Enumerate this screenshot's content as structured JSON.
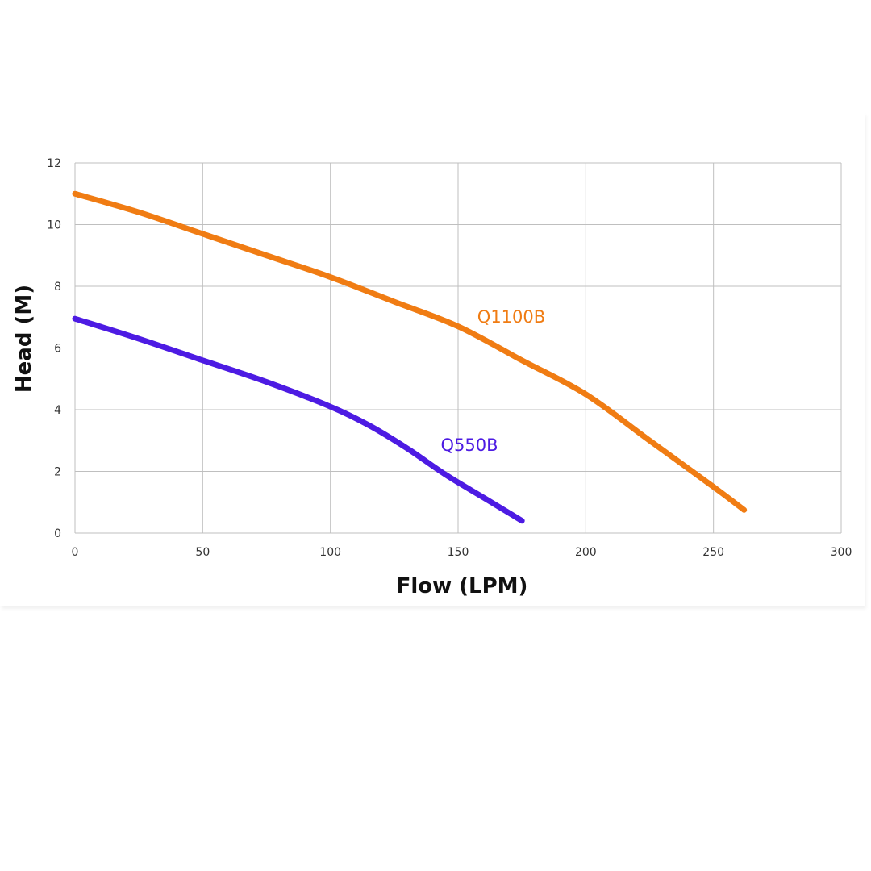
{
  "chart_data": {
    "type": "line",
    "title": "",
    "xlabel": "Flow (LPM)",
    "ylabel": "Head (M)",
    "xlim": [
      0,
      300
    ],
    "ylim": [
      0,
      12
    ],
    "x_ticks": [
      0,
      50,
      100,
      150,
      200,
      250,
      300
    ],
    "y_ticks": [
      0,
      2,
      4,
      6,
      8,
      10,
      12
    ],
    "grid": true,
    "legend": "none",
    "series": [
      {
        "name": "Q1100B",
        "color": "#f07c13",
        "x": [
          0,
          25,
          50,
          75,
          100,
          125,
          150,
          175,
          200,
          225,
          250,
          262
        ],
        "y": [
          11.0,
          10.4,
          9.7,
          9.0,
          8.3,
          7.5,
          6.7,
          5.6,
          4.5,
          3.0,
          1.5,
          0.75
        ]
      },
      {
        "name": "Q550B",
        "color": "#4d1be3",
        "x": [
          0,
          25,
          50,
          75,
          100,
          115,
          130,
          145,
          160,
          175
        ],
        "y": [
          6.95,
          6.3,
          5.6,
          4.9,
          4.1,
          3.5,
          2.75,
          1.9,
          1.15,
          0.4
        ]
      }
    ]
  }
}
